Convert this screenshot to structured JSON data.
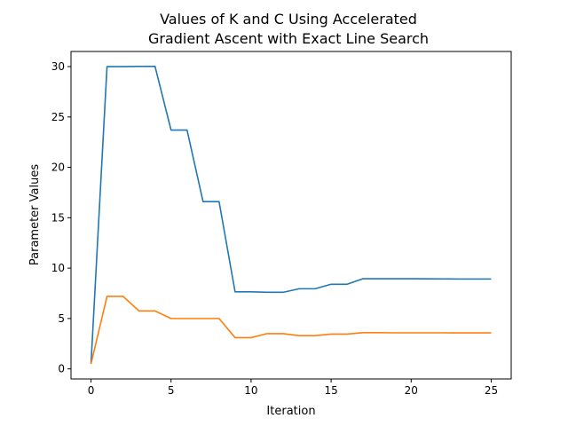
{
  "chart_data": {
    "type": "line",
    "title_lines": [
      "Values of K and C Using Accelerated",
      "Gradient Ascent with Exact Line Search"
    ],
    "xlabel": "Iteration",
    "ylabel": "Parameter Values",
    "xlim": [
      -1.25,
      26.25
    ],
    "ylim": [
      -1.0,
      31.5
    ],
    "xticks": [
      0,
      5,
      10,
      15,
      20,
      25
    ],
    "yticks": [
      0,
      5,
      10,
      15,
      20,
      25,
      30
    ],
    "grid": false,
    "legend": "none",
    "x": [
      0,
      1,
      2,
      3,
      4,
      5,
      6,
      7,
      8,
      9,
      10,
      11,
      12,
      13,
      14,
      15,
      16,
      17,
      18,
      19,
      20,
      21,
      22,
      23,
      24,
      25
    ],
    "series": [
      {
        "color": "#1f77b4",
        "values": [
          0.5,
          30.0,
          30.0,
          30.02,
          30.02,
          23.7,
          23.7,
          16.6,
          16.6,
          7.65,
          7.65,
          7.6,
          7.6,
          7.95,
          7.95,
          8.4,
          8.4,
          8.95,
          8.95,
          8.95,
          8.95,
          8.94,
          8.93,
          8.92,
          8.92,
          8.92
        ]
      },
      {
        "color": "#ff7f0e",
        "values": [
          0.5,
          7.2,
          7.2,
          5.75,
          5.75,
          5.0,
          5.0,
          5.0,
          5.0,
          3.1,
          3.1,
          3.5,
          3.5,
          3.3,
          3.3,
          3.45,
          3.45,
          3.6,
          3.6,
          3.58,
          3.58,
          3.58,
          3.58,
          3.57,
          3.57,
          3.57
        ]
      }
    ]
  }
}
